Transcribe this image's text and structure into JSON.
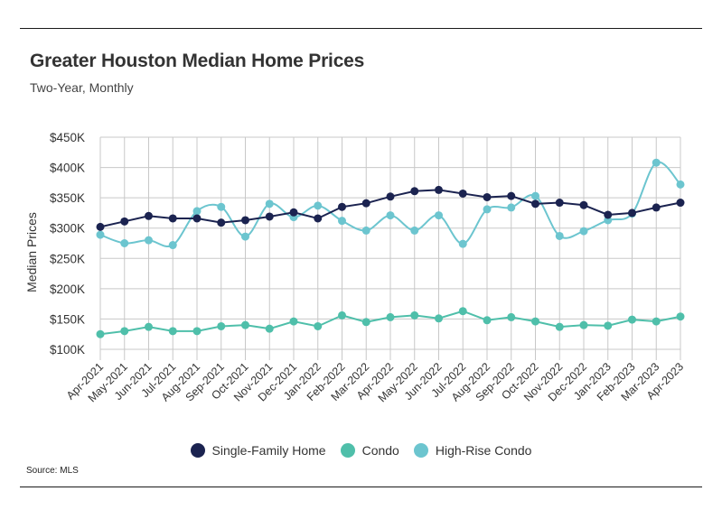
{
  "title": "Greater Houston Median Home Prices",
  "subtitle": "Two-Year, Monthly",
  "source": "Source:  MLS",
  "chart_data": {
    "type": "line",
    "title": "Greater Houston Median Home Prices",
    "subtitle": "Two-Year, Monthly",
    "xlabel": "",
    "ylabel": "Median Prices",
    "ylim": [
      100000,
      450000
    ],
    "yticks": [
      100000,
      150000,
      200000,
      250000,
      300000,
      350000,
      400000,
      450000
    ],
    "ytick_labels": [
      "$100K",
      "$150K",
      "$200K",
      "$250K",
      "$300K",
      "$350K",
      "$400K",
      "$450K"
    ],
    "grid": true,
    "legend_position": "bottom",
    "categories": [
      "Apr-2021",
      "May-2021",
      "Jun-2021",
      "Jul-2021",
      "Aug-2021",
      "Sep-2021",
      "Oct-2021",
      "Nov-2021",
      "Dec-2021",
      "Jan-2022",
      "Feb-2022",
      "Mar-2022",
      "Apr-2022",
      "May-2022",
      "Jun-2022",
      "Jul-2022",
      "Aug-2022",
      "Sep-2022",
      "Oct-2022",
      "Nov-2022",
      "Dec-2022",
      "Jan-2023",
      "Feb-2023",
      "Mar-2023",
      "Apr-2023"
    ],
    "series": [
      {
        "name": "High-Rise Condo",
        "color": "#6cc5cf",
        "smooth": true,
        "values": [
          289000,
          275000,
          280000,
          272000,
          328000,
          335000,
          286000,
          340000,
          318000,
          337000,
          312000,
          296000,
          321000,
          296000,
          321000,
          274000,
          331000,
          334000,
          353000,
          287000,
          295000,
          313000,
          324000,
          408000,
          372000
        ]
      },
      {
        "name": "Condo",
        "color": "#4fbfaa",
        "smooth": false,
        "values": [
          125000,
          130000,
          137000,
          130000,
          130000,
          138000,
          140000,
          134000,
          146000,
          138000,
          156000,
          145000,
          153000,
          156000,
          151000,
          163000,
          148000,
          153000,
          146000,
          137000,
          140000,
          139000,
          149000,
          146000,
          154000
        ]
      },
      {
        "name": "Single-Family Home",
        "color": "#1b2350",
        "smooth": false,
        "values": [
          302000,
          311000,
          320000,
          316000,
          316000,
          309000,
          313000,
          319000,
          326000,
          316000,
          335000,
          341000,
          352000,
          361000,
          363000,
          357000,
          351000,
          353000,
          340000,
          342000,
          338000,
          322000,
          325000,
          334000,
          342000
        ]
      }
    ]
  },
  "legend": [
    {
      "label": "Single-Family Home",
      "color": "#1b2350"
    },
    {
      "label": "Condo",
      "color": "#4fbfaa"
    },
    {
      "label": "High-Rise Condo",
      "color": "#6cc5cf"
    }
  ]
}
